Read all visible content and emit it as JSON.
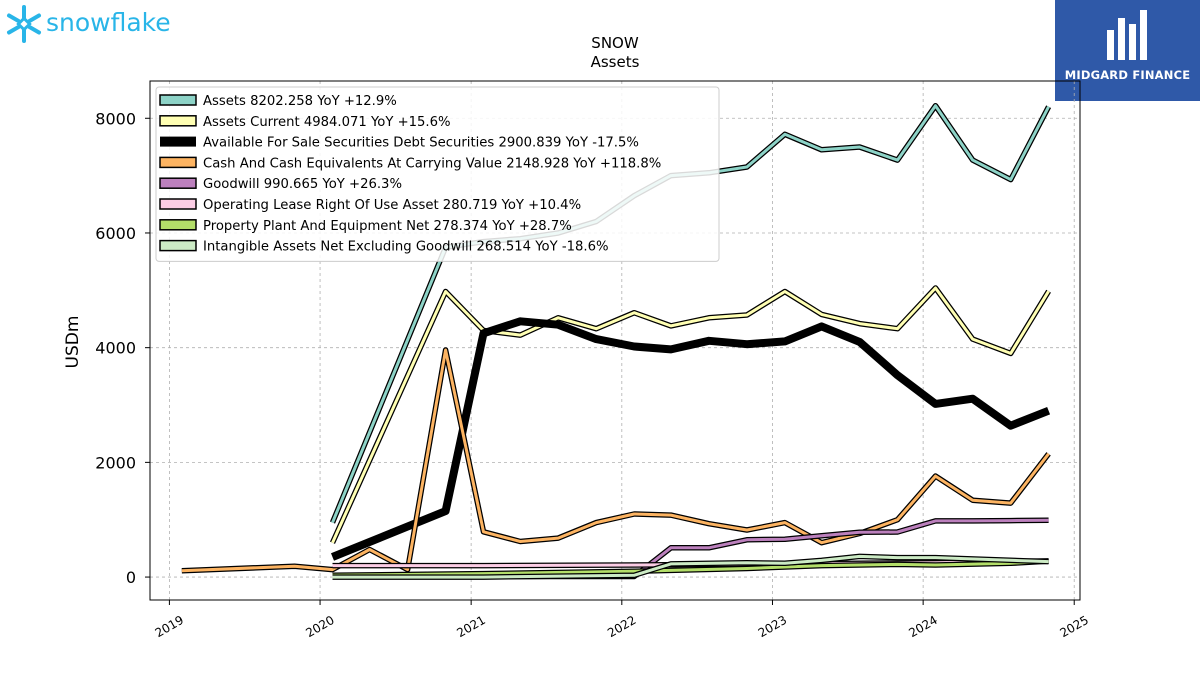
{
  "logos": {
    "left_text": "snowflake",
    "left_color": "#29b5e8",
    "right_text": "MIDGARD FINANCE",
    "right_bg": "#2f59a8"
  },
  "chart_data": {
    "type": "line",
    "title": "SNOW",
    "subtitle": "Assets",
    "xlabel": "",
    "ylabel": "USDm",
    "xlim": [
      "2018-11-15",
      "2025-01-15"
    ],
    "ylim": [
      -400,
      8650
    ],
    "x_ticks": [
      "2019",
      "2020",
      "2021",
      "2022",
      "2023",
      "2024",
      "2025"
    ],
    "y_ticks": [
      0,
      2000,
      4000,
      6000,
      8000
    ],
    "grid": true,
    "legend_position": "top-left",
    "series": [
      {
        "name": "Assets  8202.258 YoY +12.9%",
        "color": "#8dd3c7",
        "width": 3,
        "points": [
          [
            "2020-01-31",
            950
          ],
          [
            "2020-10-31",
            5750
          ],
          [
            "2021-01-31",
            5850
          ],
          [
            "2021-04-30",
            5900
          ],
          [
            "2021-07-31",
            6000
          ],
          [
            "2021-10-31",
            6200
          ],
          [
            "2022-01-31",
            6650
          ],
          [
            "2022-04-30",
            7000
          ],
          [
            "2022-07-31",
            7050
          ],
          [
            "2022-10-31",
            7150
          ],
          [
            "2023-01-31",
            7720
          ],
          [
            "2023-04-30",
            7450
          ],
          [
            "2023-07-31",
            7500
          ],
          [
            "2023-10-31",
            7270
          ],
          [
            "2024-01-31",
            8220
          ],
          [
            "2024-04-30",
            7270
          ],
          [
            "2024-07-31",
            6930
          ],
          [
            "2024-10-31",
            8202
          ]
        ]
      },
      {
        "name": "Assets Current  4984.071 YoY +15.6%",
        "color": "#ffffb3",
        "width": 3,
        "points": [
          [
            "2020-01-31",
            600
          ],
          [
            "2020-10-31",
            4980
          ],
          [
            "2021-01-31",
            4300
          ],
          [
            "2021-04-30",
            4220
          ],
          [
            "2021-07-31",
            4520
          ],
          [
            "2021-10-31",
            4330
          ],
          [
            "2022-01-31",
            4610
          ],
          [
            "2022-04-30",
            4380
          ],
          [
            "2022-07-31",
            4520
          ],
          [
            "2022-10-31",
            4570
          ],
          [
            "2023-01-31",
            4980
          ],
          [
            "2023-04-30",
            4580
          ],
          [
            "2023-07-31",
            4420
          ],
          [
            "2023-10-31",
            4330
          ],
          [
            "2024-01-31",
            5040
          ],
          [
            "2024-04-30",
            4150
          ],
          [
            "2024-07-31",
            3900
          ],
          [
            "2024-10-31",
            4984
          ]
        ]
      },
      {
        "name": "Available For Sale Securities Debt Securities  2900.839 YoY -17.5%",
        "color": "#000000",
        "width": 8,
        "points": [
          [
            "2020-01-31",
            350
          ],
          [
            "2020-10-31",
            1150
          ],
          [
            "2021-01-31",
            4250
          ],
          [
            "2021-04-30",
            4460
          ],
          [
            "2021-07-31",
            4400
          ],
          [
            "2021-10-31",
            4150
          ],
          [
            "2022-01-31",
            4020
          ],
          [
            "2022-04-30",
            3970
          ],
          [
            "2022-07-31",
            4120
          ],
          [
            "2022-10-31",
            4060
          ],
          [
            "2023-01-31",
            4110
          ],
          [
            "2023-04-30",
            4370
          ],
          [
            "2023-07-31",
            4100
          ],
          [
            "2023-10-31",
            3520
          ],
          [
            "2024-01-31",
            3020
          ],
          [
            "2024-04-30",
            3110
          ],
          [
            "2024-07-31",
            2640
          ],
          [
            "2024-10-31",
            2901
          ]
        ]
      },
      {
        "name": "Cash And Cash Equivalents At Carrying Value  2148.928 YoY +118.8%",
        "color": "#fdb462",
        "width": 3,
        "points": [
          [
            "2019-01-31",
            110
          ],
          [
            "2019-10-31",
            190
          ],
          [
            "2020-01-31",
            130
          ],
          [
            "2020-04-30",
            480
          ],
          [
            "2020-07-31",
            130
          ],
          [
            "2020-10-31",
            3960
          ],
          [
            "2021-01-31",
            790
          ],
          [
            "2021-04-30",
            620
          ],
          [
            "2021-07-31",
            680
          ],
          [
            "2021-10-31",
            950
          ],
          [
            "2022-01-31",
            1100
          ],
          [
            "2022-04-30",
            1080
          ],
          [
            "2022-07-31",
            930
          ],
          [
            "2022-10-31",
            820
          ],
          [
            "2023-01-31",
            950
          ],
          [
            "2023-04-30",
            600
          ],
          [
            "2023-07-31",
            760
          ],
          [
            "2023-10-31",
            1000
          ],
          [
            "2024-01-31",
            1760
          ],
          [
            "2024-04-30",
            1340
          ],
          [
            "2024-07-31",
            1290
          ],
          [
            "2024-10-31",
            2149
          ]
        ]
      },
      {
        "name": "Goodwill  990.665 YoY +26.3%",
        "color": "#bc80bd",
        "width": 3,
        "points": [
          [
            "2020-01-31",
            10
          ],
          [
            "2021-01-31",
            10
          ],
          [
            "2022-01-31",
            10
          ],
          [
            "2022-04-30",
            510
          ],
          [
            "2022-07-31",
            510
          ],
          [
            "2022-10-31",
            650
          ],
          [
            "2023-01-31",
            660
          ],
          [
            "2023-04-30",
            720
          ],
          [
            "2023-07-31",
            780
          ],
          [
            "2023-10-31",
            785
          ],
          [
            "2024-01-31",
            980
          ],
          [
            "2024-04-30",
            980
          ],
          [
            "2024-07-31",
            985
          ],
          [
            "2024-10-31",
            991
          ]
        ]
      },
      {
        "name": "Operating Lease Right Of Use Asset  280.719 YoY +10.4%",
        "color": "#fccde5",
        "width": 3,
        "points": [
          [
            "2020-01-31",
            200
          ],
          [
            "2021-01-31",
            200
          ],
          [
            "2022-01-31",
            210
          ],
          [
            "2023-01-31",
            230
          ],
          [
            "2024-01-31",
            250
          ],
          [
            "2024-10-31",
            281
          ]
        ]
      },
      {
        "name": "Property Plant And Equipment Net  278.374 YoY +28.7%",
        "color": "#b3de69",
        "width": 3,
        "points": [
          [
            "2020-01-31",
            30
          ],
          [
            "2021-01-31",
            60
          ],
          [
            "2022-01-31",
            100
          ],
          [
            "2022-10-31",
            150
          ],
          [
            "2023-04-30",
            200
          ],
          [
            "2023-10-31",
            220
          ],
          [
            "2024-01-31",
            210
          ],
          [
            "2024-07-31",
            240
          ],
          [
            "2024-10-31",
            278
          ]
        ]
      },
      {
        "name": "Intangible Assets Net Excluding Goodwill  268.514 YoY -18.6%",
        "color": "#ccebc5",
        "width": 3,
        "points": [
          [
            "2020-01-31",
            0
          ],
          [
            "2021-01-31",
            0
          ],
          [
            "2022-01-31",
            30
          ],
          [
            "2022-04-30",
            230
          ],
          [
            "2022-10-31",
            250
          ],
          [
            "2023-01-31",
            240
          ],
          [
            "2023-04-30",
            290
          ],
          [
            "2023-07-31",
            360
          ],
          [
            "2023-10-31",
            340
          ],
          [
            "2024-01-31",
            340
          ],
          [
            "2024-10-31",
            269
          ]
        ]
      }
    ]
  }
}
